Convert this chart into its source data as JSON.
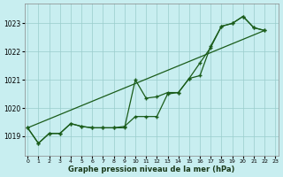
{
  "xlabel": "Graphe pression niveau de la mer (hPa)",
  "background_color": "#c8eef0",
  "grid_color": "#99cccc",
  "line_color": "#1a5c1a",
  "x_ticks": [
    0,
    1,
    2,
    3,
    4,
    5,
    6,
    7,
    8,
    9,
    10,
    11,
    12,
    13,
    14,
    15,
    16,
    17,
    18,
    19,
    20,
    21,
    22,
    23
  ],
  "y_ticks": [
    1019,
    1020,
    1021,
    1022,
    1023
  ],
  "ylim": [
    1018.3,
    1023.7
  ],
  "xlim": [
    -0.3,
    23.3
  ],
  "smooth_line_x": [
    0,
    22
  ],
  "smooth_line_y": [
    1019.3,
    1022.75
  ],
  "jagged_x": [
    0,
    1,
    2,
    3,
    4,
    5,
    6,
    7,
    8,
    9,
    10,
    11,
    12,
    13,
    14,
    15,
    16,
    17,
    18,
    19,
    20,
    21,
    22
  ],
  "jagged_y": [
    1019.3,
    1018.75,
    1019.1,
    1019.1,
    1019.45,
    1019.35,
    1019.3,
    1019.3,
    1019.3,
    1019.3,
    1021.0,
    1020.35,
    1020.4,
    1020.55,
    1020.55,
    1021.05,
    1021.15,
    1022.2,
    1022.9,
    1023.0,
    1023.25,
    1022.85,
    1022.75
  ],
  "mid_x": [
    0,
    1,
    2,
    3,
    4,
    5,
    6,
    7,
    8,
    9,
    10,
    11,
    12,
    13,
    14,
    15,
    16,
    17,
    18,
    19,
    20,
    21,
    22
  ],
  "mid_y": [
    1019.3,
    1018.75,
    1019.1,
    1019.1,
    1019.45,
    1019.35,
    1019.3,
    1019.3,
    1019.3,
    1019.35,
    1019.7,
    1019.7,
    1019.7,
    1020.5,
    1020.55,
    1021.05,
    1021.6,
    1022.15,
    1022.9,
    1023.0,
    1023.25,
    1022.85,
    1022.75
  ]
}
